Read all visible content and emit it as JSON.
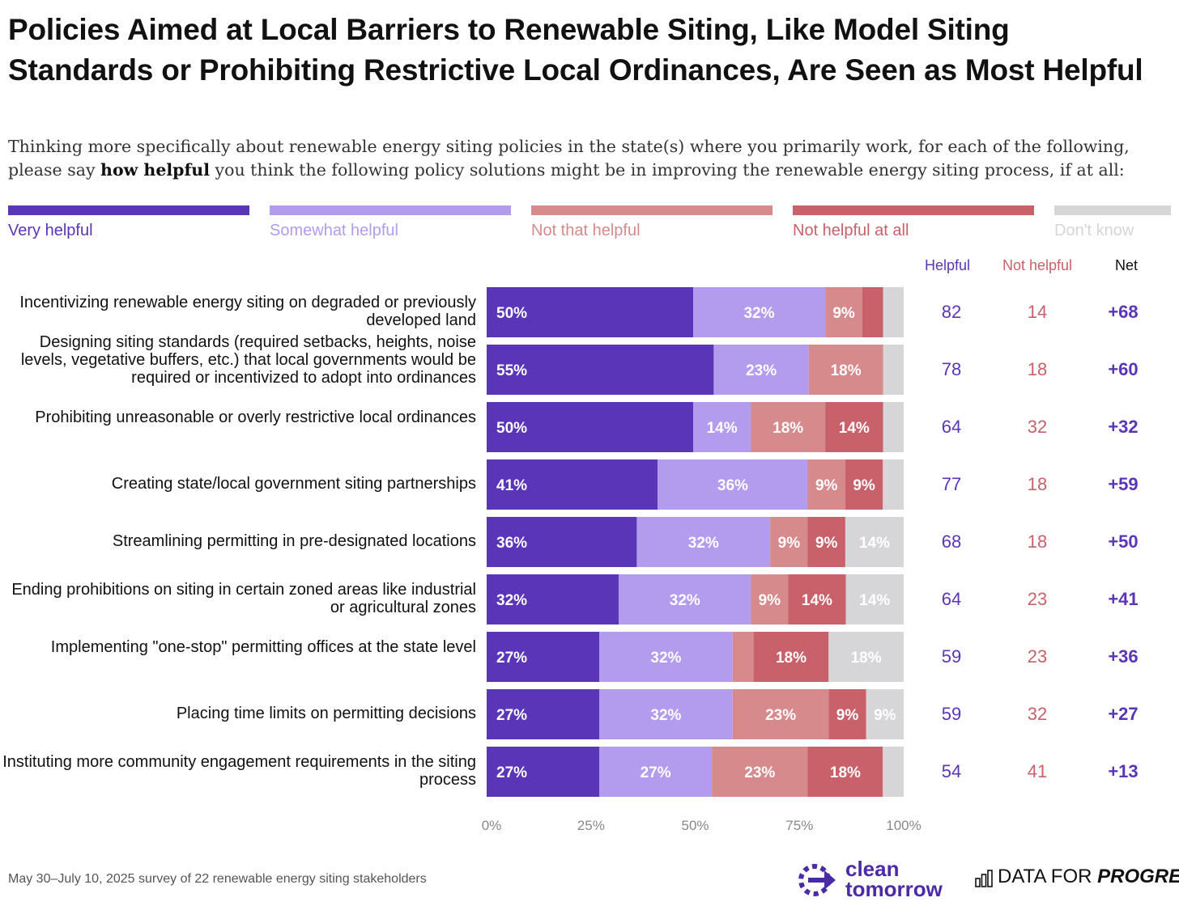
{
  "title": "Policies Aimed at Local Barriers to Renewable Siting, Like Model Siting Standards or Prohibiting Restrictive Local Ordinances, Are Seen as Most Helpful",
  "subtitle_pre": "Thinking more specifically about renewable energy siting policies in the state(s) where you primarily work, for each of the following, please say ",
  "subtitle_bold": "how helpful",
  "subtitle_post": " you think the following policy solutions might be in improving the renewable energy siting process, if at all:",
  "colors": {
    "very_helpful": "#5a35b8",
    "somewhat_helpful": "#b39bee",
    "not_that_helpful": "#d68a8c",
    "not_helpful_at_all": "#c8616a",
    "dont_know": "#d6d6d8"
  },
  "legend": [
    {
      "label": "Very helpful",
      "color": "#5a35b8"
    },
    {
      "label": "Somewhat helpful",
      "color": "#b39bee"
    },
    {
      "label": "Not that helpful",
      "color": "#d68a8c"
    },
    {
      "label": "Not helpful at all",
      "color": "#c8616a"
    },
    {
      "label": "Don't know",
      "color": "#d6d6d8"
    }
  ],
  "columns": {
    "helpful": "Helpful",
    "not_helpful": "Not helpful",
    "net": "Net"
  },
  "chart_data": {
    "type": "bar",
    "orientation": "horizontal",
    "stacked": true,
    "xlim": [
      0,
      100
    ],
    "x_ticks": [
      "0%",
      "25%",
      "50%",
      "75%",
      "100%"
    ],
    "series": [
      {
        "name": "Very helpful",
        "values": [
          50,
          55,
          50,
          41,
          36,
          32,
          27,
          27,
          27
        ]
      },
      {
        "name": "Somewhat helpful",
        "values": [
          32,
          23,
          14,
          36,
          32,
          32,
          32,
          32,
          27
        ]
      },
      {
        "name": "Not that helpful",
        "values": [
          9,
          18,
          18,
          9,
          9,
          9,
          5,
          23,
          23
        ]
      },
      {
        "name": "Not helpful at all",
        "values": [
          5,
          0,
          14,
          9,
          9,
          14,
          18,
          9,
          18
        ]
      },
      {
        "name": "Don't know",
        "values": [
          5,
          5,
          5,
          5,
          14,
          14,
          18,
          9,
          5
        ]
      }
    ],
    "rows": [
      {
        "label": "Incentivizing renewable energy siting on degraded or previously developed land",
        "segments": [
          50,
          32,
          9,
          5,
          5
        ],
        "labels": [
          "50%",
          "32%",
          "9%",
          "",
          ""
        ],
        "helpful": "82",
        "not_helpful": "14",
        "net": "+68"
      },
      {
        "label": "Designing siting standards (required setbacks, heights, noise levels, vegetative buffers, etc.) that local governments would be required or incentivized to adopt into ordinances",
        "segments": [
          55,
          23,
          18,
          0,
          5
        ],
        "labels": [
          "55%",
          "23%",
          "18%",
          "",
          ""
        ],
        "helpful": "78",
        "not_helpful": "18",
        "net": "+60"
      },
      {
        "label": "Prohibiting unreasonable or overly restrictive local ordinances",
        "segments": [
          50,
          14,
          18,
          14,
          5
        ],
        "labels": [
          "50%",
          "14%",
          "18%",
          "14%",
          ""
        ],
        "helpful": "64",
        "not_helpful": "32",
        "net": "+32"
      },
      {
        "label": "Creating state/local government siting partnerships",
        "segments": [
          41,
          36,
          9,
          9,
          5
        ],
        "labels": [
          "41%",
          "36%",
          "9%",
          "9%",
          ""
        ],
        "helpful": "77",
        "not_helpful": "18",
        "net": "+59"
      },
      {
        "label": "Streamlining permitting in pre-designated locations",
        "segments": [
          36,
          32,
          9,
          9,
          14
        ],
        "labels": [
          "36%",
          "32%",
          "9%",
          "9%",
          "14%"
        ],
        "helpful": "68",
        "not_helpful": "18",
        "net": "+50"
      },
      {
        "label": "Ending prohibitions on siting in certain zoned areas like industrial or agricultural zones",
        "segments": [
          32,
          32,
          9,
          14,
          14
        ],
        "labels": [
          "32%",
          "32%",
          "9%",
          "14%",
          "14%"
        ],
        "helpful": "64",
        "not_helpful": "23",
        "net": "+41"
      },
      {
        "label": "Implementing \"one-stop\" permitting offices at the state level",
        "segments": [
          27,
          32,
          5,
          18,
          18
        ],
        "labels": [
          "27%",
          "32%",
          "",
          "18%",
          "18%"
        ],
        "helpful": "59",
        "not_helpful": "23",
        "net": "+36"
      },
      {
        "label": "Placing time limits on permitting decisions",
        "segments": [
          27,
          32,
          23,
          9,
          9
        ],
        "labels": [
          "27%",
          "32%",
          "23%",
          "9%",
          "9%"
        ],
        "helpful": "59",
        "not_helpful": "32",
        "net": "+27"
      },
      {
        "label": "Instituting more community engagement requirements in the siting process",
        "segments": [
          27,
          27,
          23,
          18,
          5
        ],
        "labels": [
          "27%",
          "27%",
          "23%",
          "18%",
          ""
        ],
        "helpful": "54",
        "not_helpful": "41",
        "net": "+13"
      }
    ]
  },
  "footer": {
    "note": "May 30–July 10, 2025 survey of 22 renewable energy siting stakeholders",
    "logo1_line1": "clean",
    "logo1_line2": "tomorrow",
    "logo2_plain": "DATA FOR ",
    "logo2_italic": "PROGRESS"
  }
}
